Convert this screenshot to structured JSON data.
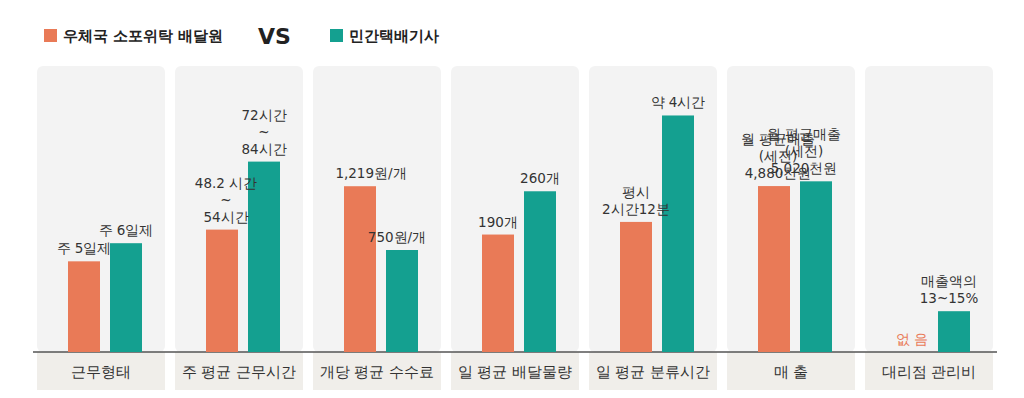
{
  "chart_data": {
    "type": "bar",
    "data_labels": true,
    "tick_labels": false,
    "vs_label": "VS",
    "series": [
      {
        "name": "우체국 소포위탁 배달원",
        "color": "#e97a57"
      },
      {
        "name": "민간택배기사",
        "color": "#14a090"
      }
    ],
    "panels": [
      {
        "title": "근무형태",
        "ylim": [
          0,
          15
        ],
        "values": [
          5,
          6
        ],
        "value_labels": [
          "주 5일제",
          "주 6일제"
        ]
      },
      {
        "title": "주 평균 근무시간",
        "ylim": [
          0,
          120
        ],
        "values": [
          54,
          84
        ],
        "value_labels": [
          "48.2 시간\n~\n54시간",
          "72시간\n~\n84시간"
        ]
      },
      {
        "title": "개당 평균 수수료",
        "ylim": [
          0,
          2000
        ],
        "values": [
          1219,
          750
        ],
        "value_labels": [
          "1,219원/개",
          "750원/개"
        ]
      },
      {
        "title": "일 평균 배달물량",
        "ylim": [
          0,
          440
        ],
        "values": [
          190,
          260
        ],
        "value_labels": [
          "190개",
          "260개"
        ]
      },
      {
        "title": "일 평균 분류시간",
        "ylim": [
          0,
          4.6
        ],
        "values": [
          2.2,
          4
        ],
        "value_labels": [
          "평시\n2시간12분",
          "약 4시간"
        ]
      },
      {
        "title": "매 출",
        "ylim": [
          0,
          8000
        ],
        "values": [
          4880,
          5020
        ],
        "value_labels": [
          "월 평균매출\n(세전)\n4,880천원",
          "월 평균매출\n(세전)\n5,020천원"
        ]
      },
      {
        "title": "대리점 관리비",
        "ylim": [
          0,
          100
        ],
        "values": [
          0,
          15
        ],
        "value_labels": [
          "없 음",
          "매출액의\n13~15%"
        ]
      }
    ]
  }
}
